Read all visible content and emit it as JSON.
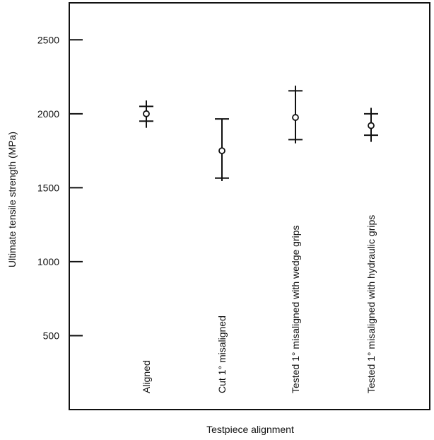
{
  "chart_data": {
    "type": "scatter",
    "title": "",
    "xlabel": "Testpiece alignment",
    "ylabel": "Ultimate tensile strength (MPa)",
    "ylim": [
      0,
      2750
    ],
    "yticks": [
      500,
      1000,
      1500,
      2000,
      2500
    ],
    "yticklabels": [
      "500",
      "1000",
      "1500",
      "2000",
      "2500"
    ],
    "grid": false,
    "legend": "none",
    "categories": [
      "Aligned",
      "Cut 1° misaligned",
      "Tested 1° misaligned with wedge grips",
      "Tested 1° misaligned with hydraulic grips"
    ],
    "series": [
      {
        "mean": [
          2000,
          1750,
          1975,
          1920
        ],
        "upper": [
          2050,
          1965,
          2155,
          2000
        ],
        "lower": [
          1950,
          1565,
          1825,
          1855
        ],
        "max": [
          2090,
          1965,
          2190,
          2040
        ],
        "min": [
          1905,
          1545,
          1800,
          1810
        ]
      }
    ]
  }
}
